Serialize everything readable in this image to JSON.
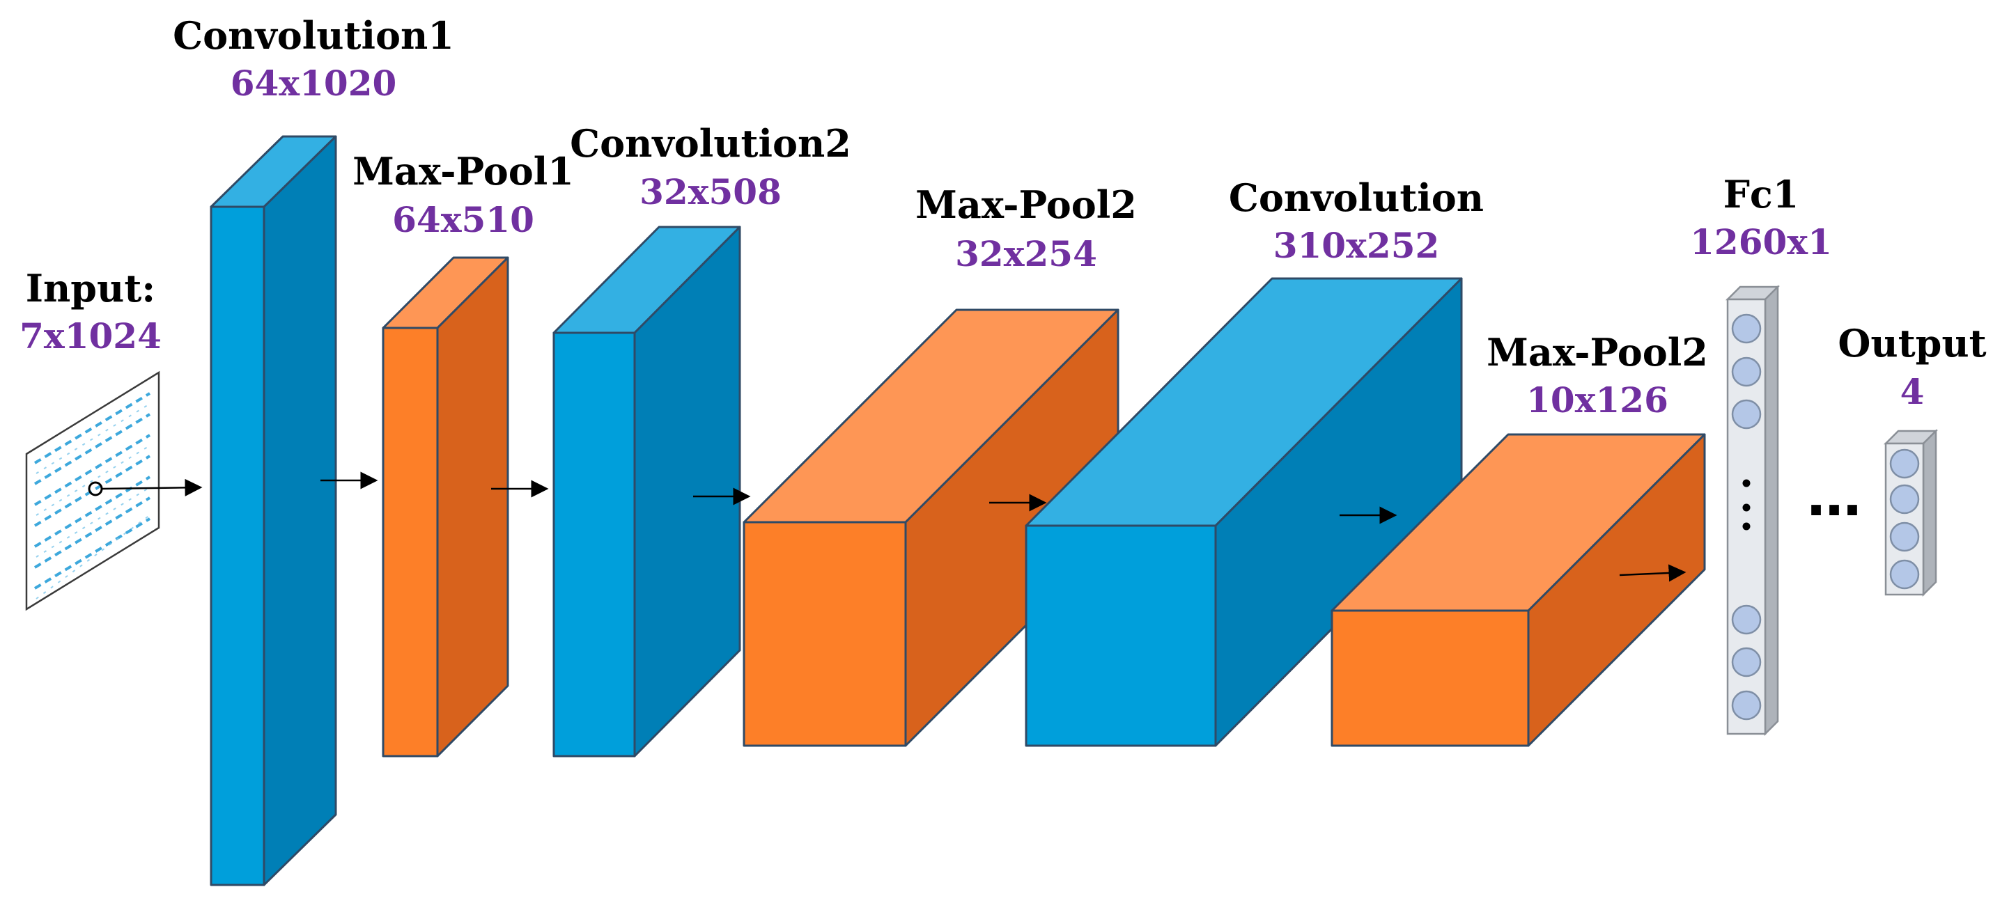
{
  "colors": {
    "conv_front": "#009fdb",
    "conv_top": "#33b0e3",
    "conv_side": "#007fb6",
    "pool_front": "#fd7f28",
    "pool_top": "#fe9655",
    "pool_side": "#d8621c",
    "dim_text": "#7030a0",
    "fc_body": "#e7eaee",
    "node": "#b4c7e7"
  },
  "layers": [
    {
      "id": "input",
      "name": "Input:",
      "dims": "7x1024",
      "kind": "input"
    },
    {
      "id": "conv1",
      "name": "Convolution1",
      "dims": "64x1020",
      "kind": "conv"
    },
    {
      "id": "pool1",
      "name": "Max-Pool1",
      "dims": "64x510",
      "kind": "pool"
    },
    {
      "id": "conv2",
      "name": "Convolution2",
      "dims": "32x508",
      "kind": "conv"
    },
    {
      "id": "pool2",
      "name": "Max-Pool2",
      "dims": "32x254",
      "kind": "pool"
    },
    {
      "id": "conv3",
      "name": "Convolution",
      "dims": "310x252",
      "kind": "conv"
    },
    {
      "id": "pool3",
      "name": "Max-Pool2",
      "dims": "10x126",
      "kind": "pool"
    },
    {
      "id": "fc1",
      "name": "Fc1",
      "dims": "1260x1",
      "kind": "fc"
    },
    {
      "id": "output",
      "name": "Output",
      "dims": "4",
      "kind": "output"
    }
  ],
  "ellipsis": "…"
}
